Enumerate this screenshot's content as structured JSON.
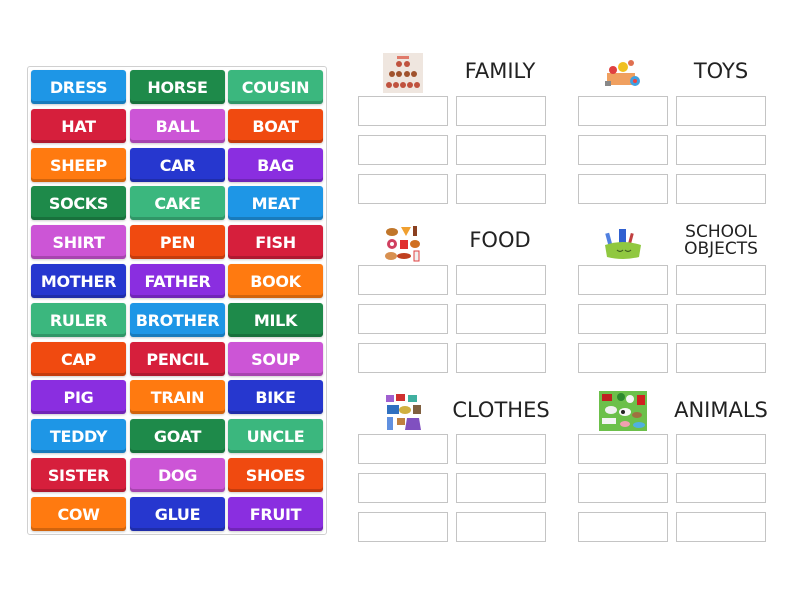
{
  "word_bank": {
    "tiles": [
      {
        "label": "DRESS",
        "color": "#1e96e6"
      },
      {
        "label": "HORSE",
        "color": "#1e8a4a"
      },
      {
        "label": "COUSIN",
        "color": "#3bb77e"
      },
      {
        "label": "HAT",
        "color": "#d61f3c"
      },
      {
        "label": "BALL",
        "color": "#cc55d6"
      },
      {
        "label": "BOAT",
        "color": "#f04a10"
      },
      {
        "label": "SHEEP",
        "color": "#ff7a10"
      },
      {
        "label": "CAR",
        "color": "#2637cf"
      },
      {
        "label": "BAG",
        "color": "#8a2ee0"
      },
      {
        "label": "SOCKS",
        "color": "#1e8a4a"
      },
      {
        "label": "CAKE",
        "color": "#3bb77e"
      },
      {
        "label": "MEAT",
        "color": "#1e96e6"
      },
      {
        "label": "SHIRT",
        "color": "#cc55d6"
      },
      {
        "label": "PEN",
        "color": "#f04a10"
      },
      {
        "label": "FISH",
        "color": "#d61f3c"
      },
      {
        "label": "MOTHER",
        "color": "#2637cf"
      },
      {
        "label": "FATHER",
        "color": "#8a2ee0"
      },
      {
        "label": "BOOK",
        "color": "#ff7a10"
      },
      {
        "label": "RULER",
        "color": "#3bb77e"
      },
      {
        "label": "BROTHER",
        "color": "#1e96e6"
      },
      {
        "label": "MILK",
        "color": "#1e8a4a"
      },
      {
        "label": "CAP",
        "color": "#f04a10"
      },
      {
        "label": "PENCIL",
        "color": "#d61f3c"
      },
      {
        "label": "SOUP",
        "color": "#cc55d6"
      },
      {
        "label": "PIG",
        "color": "#8a2ee0"
      },
      {
        "label": "TRAIN",
        "color": "#ff7a10"
      },
      {
        "label": "BIKE",
        "color": "#2637cf"
      },
      {
        "label": "TEDDY",
        "color": "#1e96e6"
      },
      {
        "label": "GOAT",
        "color": "#1e8a4a"
      },
      {
        "label": "UNCLE",
        "color": "#3bb77e"
      },
      {
        "label": "SISTER",
        "color": "#d61f3c"
      },
      {
        "label": "DOG",
        "color": "#cc55d6"
      },
      {
        "label": "SHOES",
        "color": "#f04a10"
      },
      {
        "label": "COW",
        "color": "#ff7a10"
      },
      {
        "label": "GLUE",
        "color": "#2637cf"
      },
      {
        "label": "FRUIT",
        "color": "#8a2ee0"
      }
    ]
  },
  "groups": [
    {
      "title": "FAMILY",
      "icon": "family-picture-icon",
      "slots": 6
    },
    {
      "title": "TOYS",
      "icon": "toy-box-picture-icon",
      "slots": 6
    },
    {
      "title": "FOOD",
      "icon": "food-picture-icon",
      "slots": 6
    },
    {
      "title": "SCHOOL OBJECTS",
      "title_line1": "SCHOOL",
      "title_line2": "OBJECTS",
      "icon": "pencil-case-picture-icon",
      "slots": 6
    },
    {
      "title": "CLOTHES",
      "icon": "clothes-picture-icon",
      "slots": 6
    },
    {
      "title": "ANIMALS",
      "icon": "farm-animals-picture-icon",
      "slots": 6
    }
  ]
}
